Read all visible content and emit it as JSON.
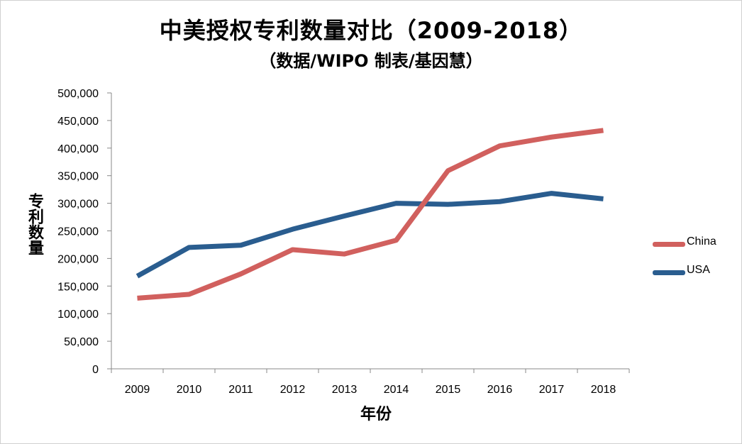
{
  "chart_data": {
    "type": "line",
    "title": "中美授权专利数量对比（2009-2018）",
    "subtitle": "（数据/WIPO 制表/基因慧）",
    "xlabel": "年份",
    "ylabel": "专利数量",
    "categories": [
      "2009",
      "2010",
      "2011",
      "2012",
      "2013",
      "2014",
      "2015",
      "2016",
      "2017",
      "2018"
    ],
    "ylim": [
      0,
      500000
    ],
    "yticks": [
      0,
      50000,
      100000,
      150000,
      200000,
      250000,
      300000,
      350000,
      400000,
      450000,
      500000
    ],
    "ytick_labels": [
      "0",
      "50,000",
      "100,000",
      "150,000",
      "200,000",
      "250,000",
      "300,000",
      "350,000",
      "400,000",
      "450,000",
      "500,000"
    ],
    "grid": false,
    "legend_position": "right",
    "series": [
      {
        "name": "China",
        "color": "#d1605e",
        "values": [
          128000,
          135000,
          172000,
          216000,
          208000,
          233000,
          359000,
          404000,
          420000,
          432000
        ]
      },
      {
        "name": "USA",
        "color": "#2a5d8f",
        "values": [
          168000,
          220000,
          224000,
          253000,
          277000,
          300000,
          298000,
          303000,
          318000,
          308000
        ]
      }
    ]
  }
}
